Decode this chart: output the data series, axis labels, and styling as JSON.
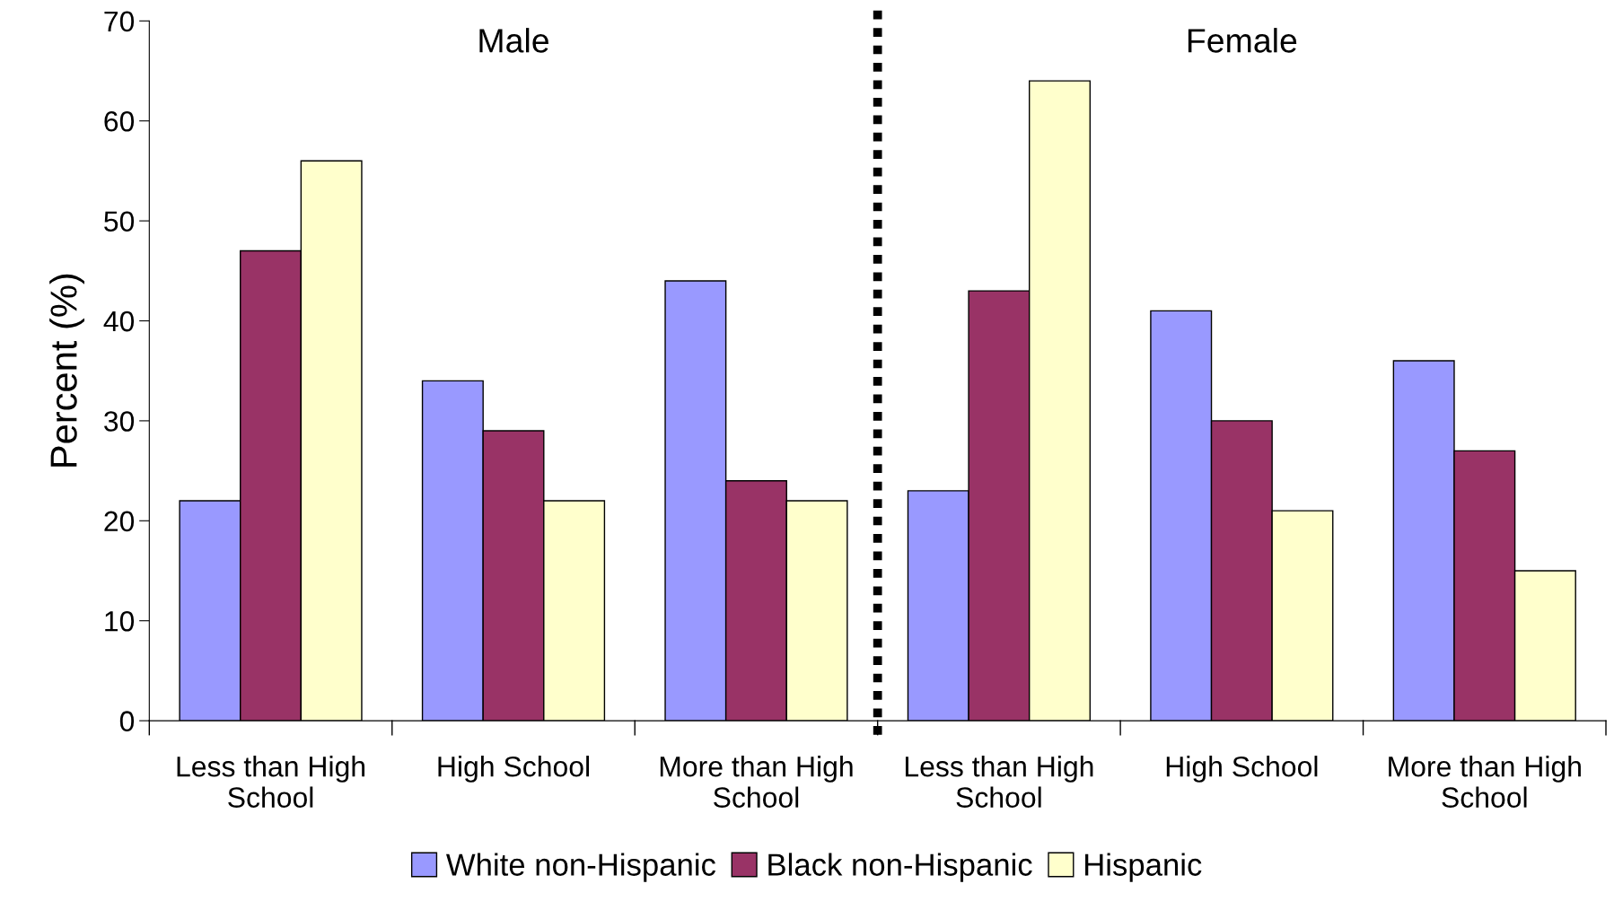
{
  "chart_data": {
    "type": "bar",
    "ylabel": "Percent (%)",
    "categories": [
      "Less than High School",
      "High School",
      "More than High School",
      "Less than High School",
      "High School",
      "More than High School"
    ],
    "series": [
      {
        "name": "White non-Hispanic",
        "color": "#9999ff",
        "values": [
          22,
          34,
          44,
          23,
          41,
          36
        ]
      },
      {
        "name": "Black non-Hispanic",
        "color": "#993366",
        "values": [
          47,
          29,
          24,
          43,
          30,
          27
        ]
      },
      {
        "name": "Hispanic",
        "color": "#ffffcc",
        "values": [
          56,
          22,
          22,
          64,
          21,
          15
        ]
      }
    ],
    "ylim": [
      0,
      70
    ],
    "yticks": [
      0,
      10,
      20,
      30,
      40,
      50,
      60,
      70
    ],
    "annotations": [
      "Male",
      "Female"
    ],
    "grid": false,
    "legend": "bottom"
  }
}
